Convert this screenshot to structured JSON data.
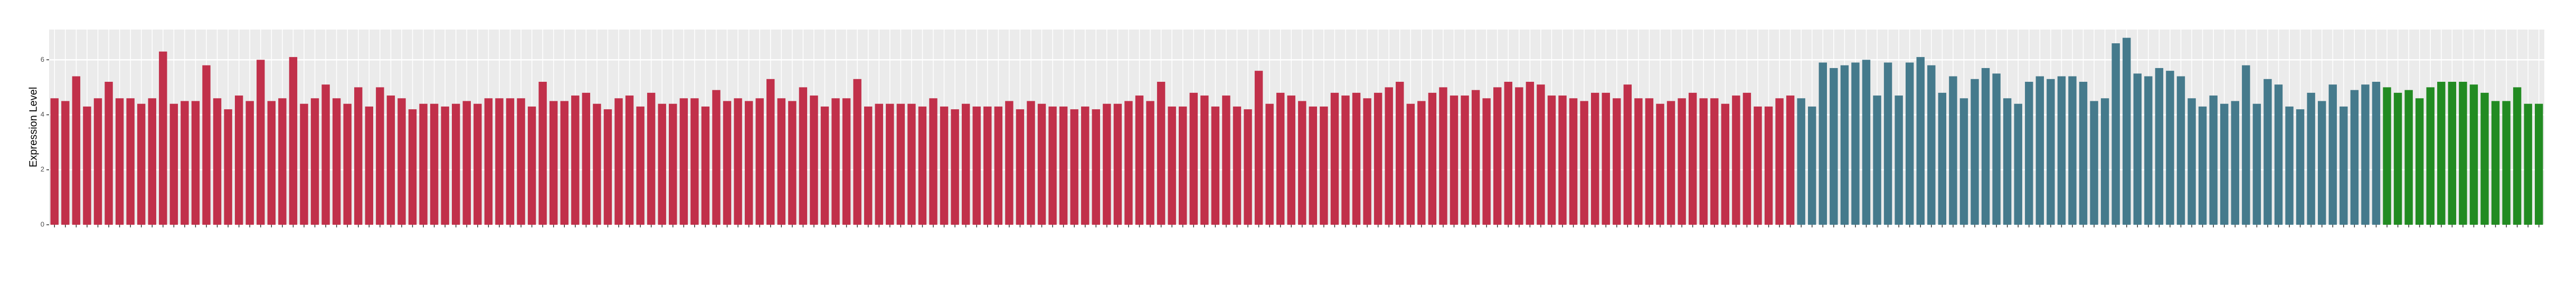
{
  "chart_data": {
    "type": "bar",
    "y_label": "Expression Level",
    "ylim": [
      0,
      7.1
    ],
    "yticks": [
      0,
      2,
      4,
      6
    ],
    "grid": true,
    "groups": [
      {
        "color": "#c1304a",
        "values": [
          4.6,
          4.5,
          5.4,
          4.3,
          4.6,
          5.2,
          4.6,
          4.6,
          4.4,
          4.6,
          6.3,
          4.4,
          4.5,
          4.5,
          5.8,
          4.6,
          4.2,
          4.7,
          4.5,
          6.0,
          4.5,
          4.6,
          6.1,
          4.4,
          4.6,
          5.1,
          4.6,
          4.4,
          5.0,
          4.3,
          5.0,
          4.7,
          4.6,
          4.2,
          4.4,
          4.4,
          4.3,
          4.4,
          4.5,
          4.4,
          4.6,
          4.6,
          4.6,
          4.6,
          4.3,
          5.2,
          4.5,
          4.5,
          4.7,
          4.8,
          4.4,
          4.2,
          4.6,
          4.7,
          4.3,
          4.8,
          4.4,
          4.4,
          4.6,
          4.6,
          4.3,
          4.9,
          4.5,
          4.6,
          4.5,
          4.6,
          5.3,
          4.6,
          4.5,
          5.0,
          4.7,
          4.3,
          4.6,
          4.6,
          5.3,
          4.3,
          4.4,
          4.4,
          4.4,
          4.4,
          4.3,
          4.6,
          4.3,
          4.2,
          4.4,
          4.3,
          4.3,
          4.3,
          4.5,
          4.2,
          4.5,
          4.4,
          4.3,
          4.3,
          4.2,
          4.3,
          4.2,
          4.4,
          4.4,
          4.5,
          4.7,
          4.5,
          5.2,
          4.3,
          4.3,
          4.8,
          4.7,
          4.3,
          4.7,
          4.3,
          4.2,
          5.6,
          4.4,
          4.8,
          4.7,
          4.5,
          4.3,
          4.3,
          4.8,
          4.7,
          4.8,
          4.6,
          4.8,
          5.0,
          5.2,
          4.4,
          4.5,
          4.8,
          5.0,
          4.7,
          4.7,
          4.9,
          4.6,
          5.0,
          5.2,
          5.0,
          5.2,
          5.1,
          4.7,
          4.7,
          4.6,
          4.5,
          4.8,
          4.8,
          4.6,
          5.1,
          4.6,
          4.6,
          4.4,
          4.5,
          4.6,
          4.8,
          4.6,
          4.6,
          4.4,
          4.7,
          4.8,
          4.3,
          4.3,
          4.6,
          4.7
        ]
      },
      {
        "color": "#457a8c",
        "values": [
          4.6,
          4.3,
          5.9,
          5.7,
          5.8,
          5.9,
          6.0,
          4.7,
          5.9,
          4.7,
          5.9,
          6.1,
          5.8,
          4.8,
          5.4,
          4.6,
          5.3,
          5.7,
          5.5,
          4.6,
          4.4,
          5.2,
          5.4,
          5.3,
          5.4,
          5.4,
          5.2,
          4.5,
          4.6,
          6.6,
          6.8,
          5.5,
          5.4,
          5.7,
          5.6,
          5.4,
          4.6,
          4.3,
          4.7,
          4.4,
          4.5,
          5.8,
          4.4,
          5.3,
          5.1,
          4.3,
          4.2,
          4.8,
          4.5,
          5.1,
          4.3,
          4.9,
          5.1,
          5.2
        ]
      },
      {
        "color": "#228b22",
        "values": [
          5.0,
          4.8,
          4.9,
          4.6,
          5.0,
          5.2,
          5.2,
          5.2,
          5.1,
          4.8,
          4.5,
          4.5,
          5.0,
          4.4,
          4.4
        ]
      }
    ]
  }
}
